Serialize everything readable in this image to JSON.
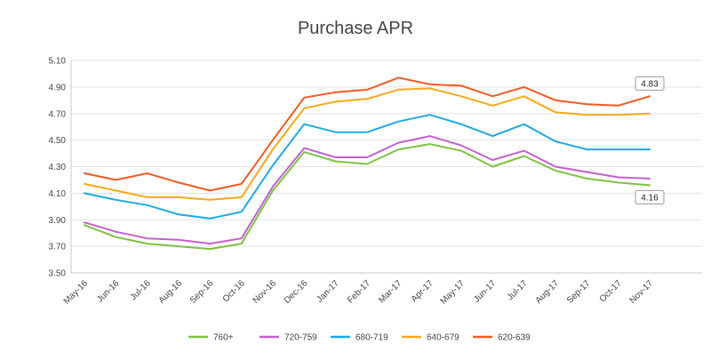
{
  "chart_data": {
    "type": "line",
    "title": "Purchase APR",
    "xlabel": "",
    "ylabel": "",
    "ylim": [
      3.5,
      5.1
    ],
    "yticks": [
      "3.50",
      "3.70",
      "3.90",
      "4.10",
      "4.30",
      "4.50",
      "4.70",
      "4.90",
      "5.10"
    ],
    "grid": true,
    "legend_position": "bottom",
    "categories": [
      "May-16",
      "Jun-16",
      "Jul-16",
      "Aug-16",
      "Sep-16",
      "Oct-16",
      "Nov-16",
      "Dec-16",
      "Jan-17",
      "Feb-17",
      "Mar-17",
      "Apr-17",
      "May-17",
      "Jun-17",
      "Jul-17",
      "Aug-17",
      "Sep-17",
      "Oct-17",
      "Nov-17"
    ],
    "series": [
      {
        "name": "760+",
        "color": "#7dc242",
        "values": [
          3.86,
          3.77,
          3.72,
          3.7,
          3.68,
          3.72,
          4.12,
          4.41,
          4.34,
          4.32,
          4.43,
          4.47,
          4.42,
          4.3,
          4.38,
          4.27,
          4.21,
          4.18,
          4.16
        ]
      },
      {
        "name": "720-759",
        "color": "#c35fcf",
        "values": [
          3.88,
          3.81,
          3.76,
          3.75,
          3.72,
          3.76,
          4.15,
          4.44,
          4.37,
          4.37,
          4.48,
          4.53,
          4.46,
          4.35,
          4.42,
          4.3,
          4.26,
          4.22,
          4.21
        ]
      },
      {
        "name": "680-719",
        "color": "#1ea9e1",
        "values": [
          4.1,
          4.05,
          4.01,
          3.94,
          3.91,
          3.96,
          4.31,
          4.62,
          4.56,
          4.56,
          4.64,
          4.69,
          4.62,
          4.53,
          4.62,
          4.49,
          4.43,
          4.43,
          4.43
        ]
      },
      {
        "name": "640-679",
        "color": "#f7a81b",
        "values": [
          4.17,
          4.12,
          4.07,
          4.07,
          4.05,
          4.07,
          4.43,
          4.74,
          4.79,
          4.81,
          4.88,
          4.89,
          4.83,
          4.76,
          4.83,
          4.71,
          4.69,
          4.69,
          4.7
        ]
      },
      {
        "name": "620-639",
        "color": "#f15a22",
        "values": [
          4.25,
          4.2,
          4.25,
          4.18,
          4.12,
          4.17,
          4.5,
          4.82,
          4.86,
          4.88,
          4.97,
          4.92,
          4.91,
          4.83,
          4.9,
          4.8,
          4.77,
          4.76,
          4.83
        ]
      }
    ],
    "annotations": [
      {
        "text": "4.83",
        "series": "620-639",
        "category": "Nov-17"
      },
      {
        "text": "4.16",
        "series": "760+",
        "category": "Nov-17"
      }
    ]
  }
}
